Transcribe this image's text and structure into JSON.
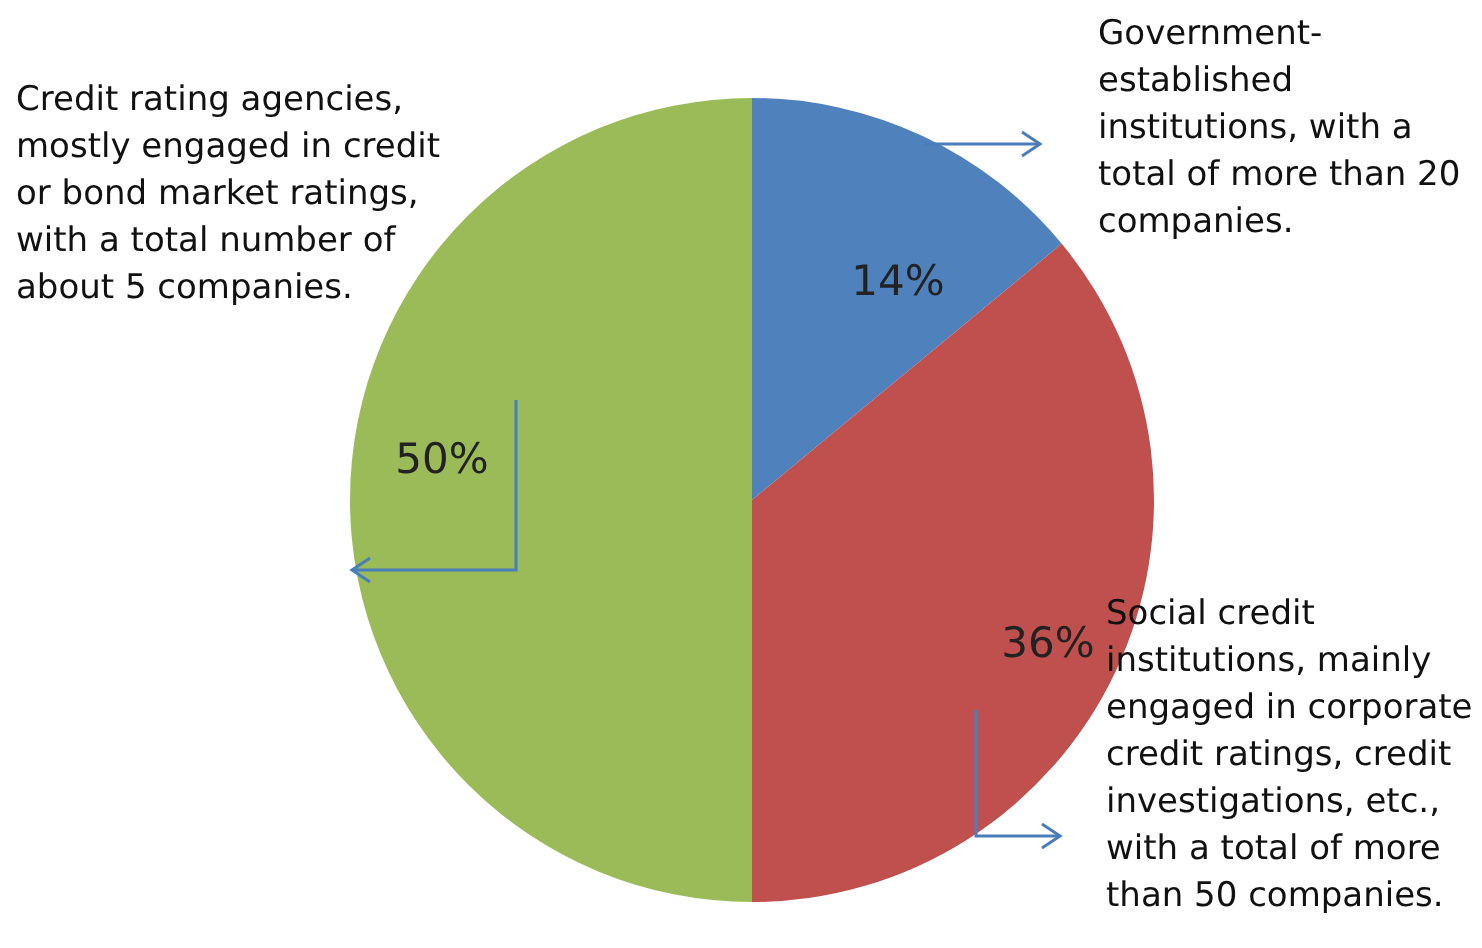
{
  "chart_data": {
    "type": "pie",
    "categories": [
      "Government-established institutions, with a total of more than 20 companies.",
      "Social credit institutions, mainly engaged in corporate credit ratings, credit investigations, etc., with a total of more than 50 companies.",
      "Credit rating agencies, mostly engaged in credit or bond market ratings, with a total number of about 5 companies."
    ],
    "values": [
      14,
      36,
      50
    ],
    "colors": [
      "#4f81bd",
      "#c0504d",
      "#9bbb59"
    ],
    "value_labels": [
      "14%",
      "36%",
      "50%"
    ]
  }
}
